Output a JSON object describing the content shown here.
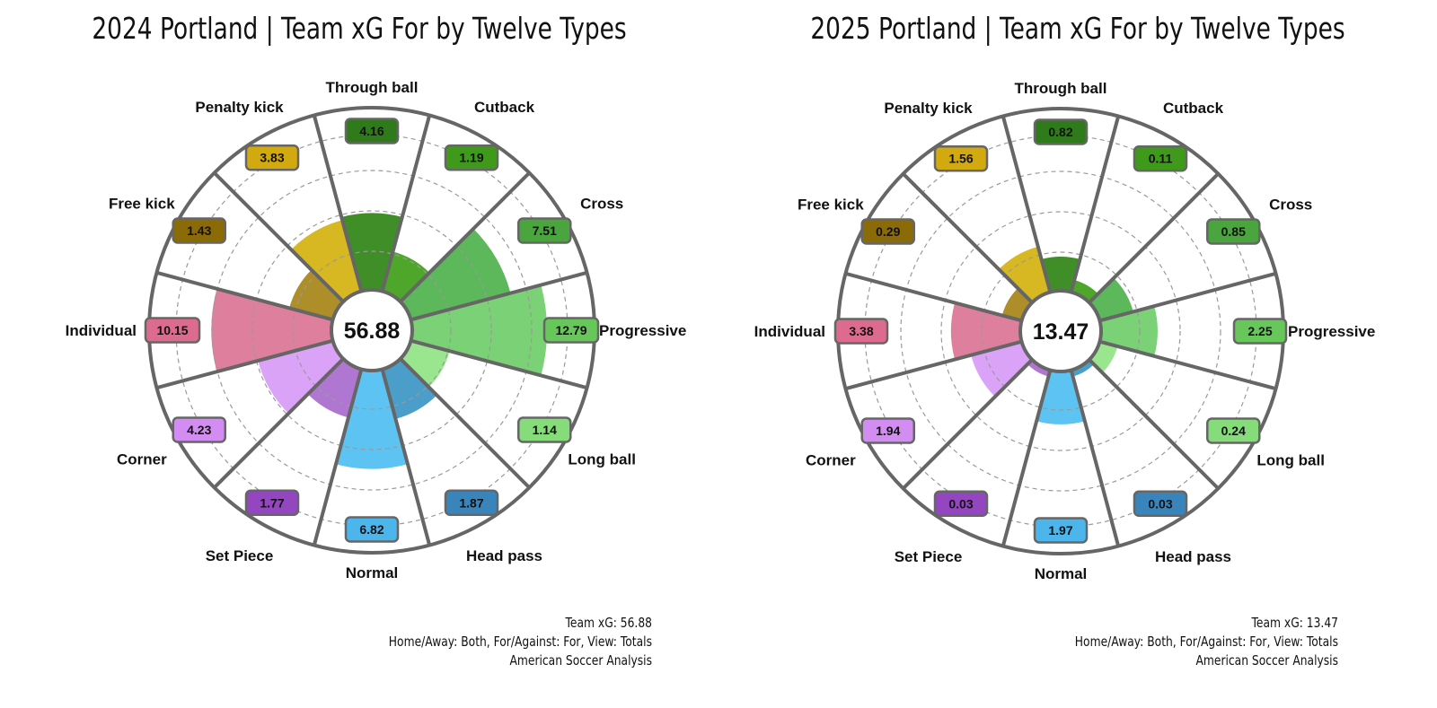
{
  "chart_data": [
    {
      "type": "polar-bar",
      "title": "2024 Portland | Team xG For by Twelve Types",
      "total": "56.88",
      "categories": [
        "Through ball",
        "Cutback",
        "Cross",
        "Progressive",
        "Long ball",
        "Head pass",
        "Normal",
        "Set Piece",
        "Corner",
        "Individual",
        "Free kick",
        "Penalty kick"
      ],
      "values": [
        4.16,
        1.19,
        7.51,
        12.79,
        1.14,
        1.87,
        6.82,
        1.77,
        4.23,
        10.15,
        1.43,
        3.83
      ],
      "value_labels": [
        "4.16",
        "1.19",
        "7.51",
        "12.79",
        "1.14",
        "1.87",
        "6.82",
        "1.77",
        "4.23",
        "10.15",
        "1.43",
        "3.83"
      ],
      "footer": [
        "Team xG: 56.88",
        "Home/Away: Both, For/Against: For, View: Totals",
        "American Soccer Analysis"
      ]
    },
    {
      "type": "polar-bar",
      "title": "2025 Portland | Team xG For by Twelve Types",
      "total": "13.47",
      "categories": [
        "Through ball",
        "Cutback",
        "Cross",
        "Progressive",
        "Long ball",
        "Head pass",
        "Normal",
        "Set Piece",
        "Corner",
        "Individual",
        "Free kick",
        "Penalty kick"
      ],
      "values": [
        0.82,
        0.11,
        0.85,
        2.25,
        0.24,
        0.03,
        1.97,
        0.03,
        1.94,
        3.38,
        0.29,
        1.56
      ],
      "value_labels": [
        "0.82",
        "0.11",
        "0.85",
        "2.25",
        "0.24",
        "0.03",
        "1.97",
        "0.03",
        "1.94",
        "3.38",
        "0.29",
        "1.56"
      ],
      "footer": [
        "Team xG: 13.47",
        "Home/Away: Both, For/Against: For, View: Totals",
        "American Soccer Analysis"
      ]
    }
  ],
  "colors": [
    "#3f8e28",
    "#4ea72a",
    "#5cb85a",
    "#7bd175",
    "#9ae68f",
    "#4a9ec9",
    "#5cc3f2",
    "#b077d2",
    "#dba3f8",
    "#df7f9e",
    "#ae8e28",
    "#d7b722"
  ],
  "label_colors": [
    "#2f7a1a",
    "#3f9a1c",
    "#4aa53e",
    "#68c75a",
    "#86dc7a",
    "#3a84bc",
    "#4cb5ec",
    "#9445c0",
    "#d38cf2",
    "#dd6a8f",
    "#8b6a08",
    "#d2a90e"
  ]
}
